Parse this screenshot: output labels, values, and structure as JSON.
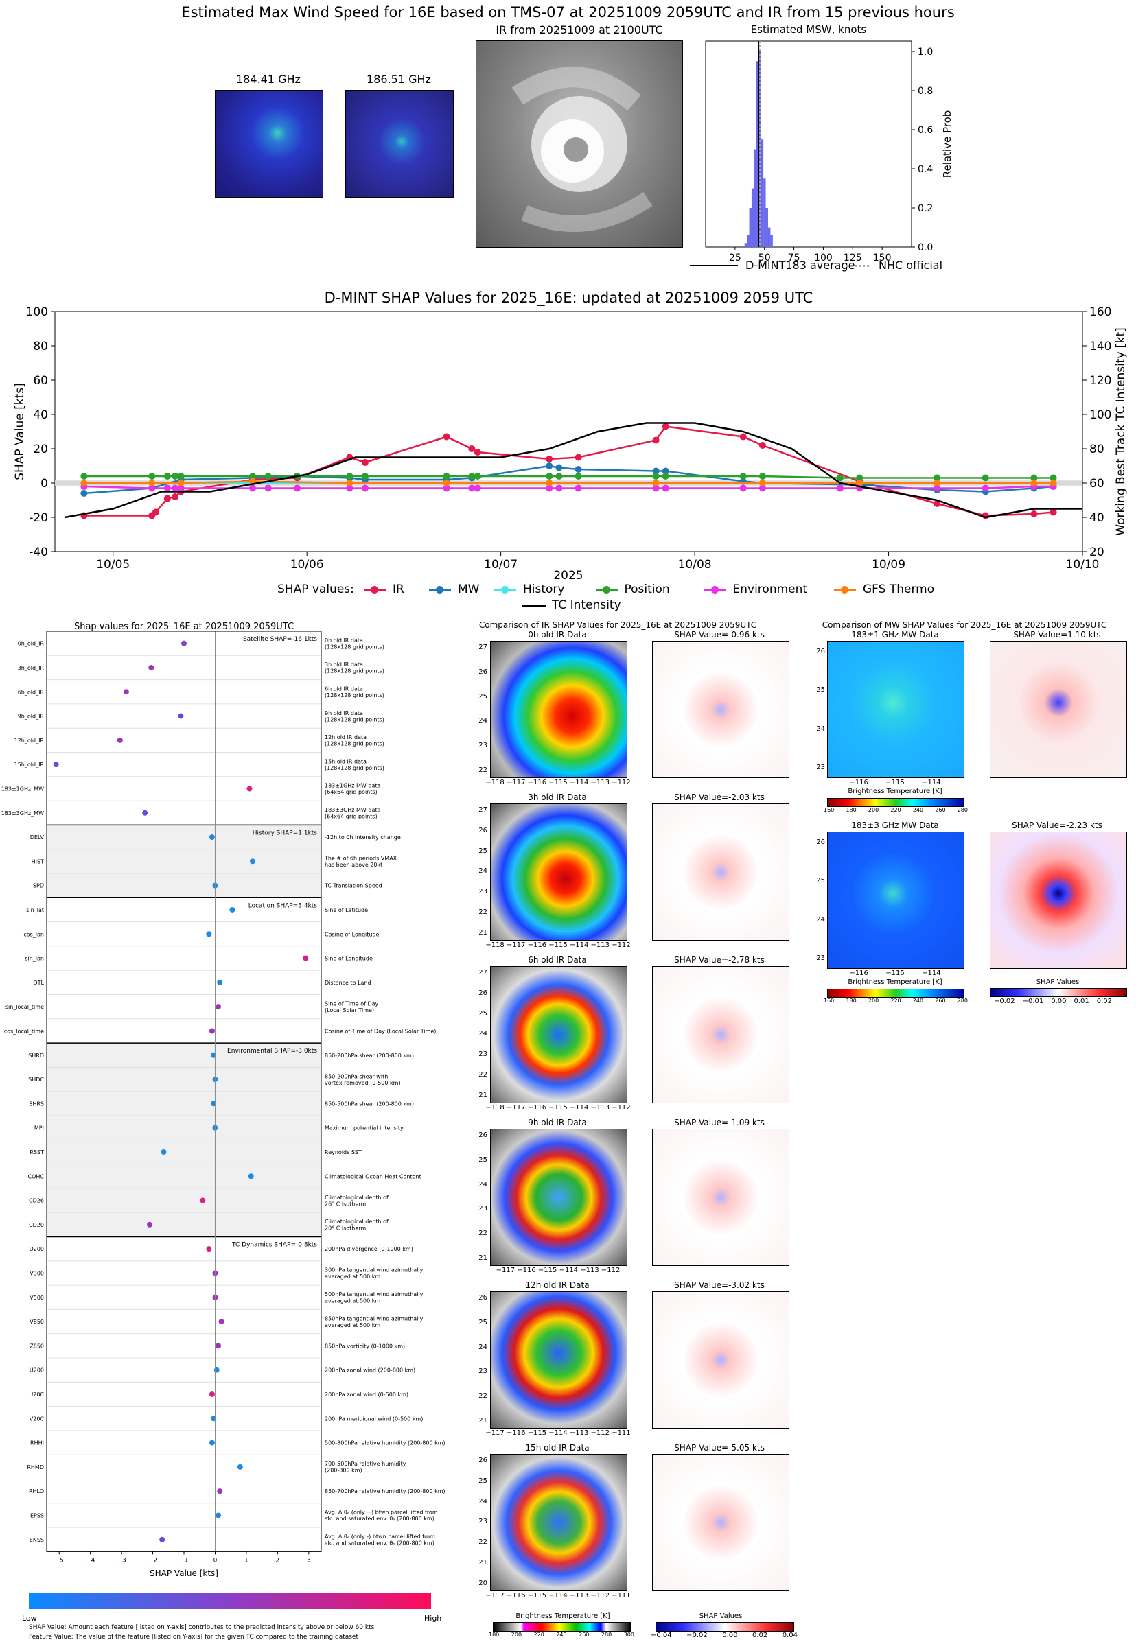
{
  "main_title": "Estimated Max Wind Speed for 16E based on TMS-07 at 20251009 2059UTC and IR from 15 previous hours",
  "mw_panels": [
    {
      "label": "184.41 GHz"
    },
    {
      "label": "186.51 GHz"
    }
  ],
  "ir_panel": {
    "label": "IR from 20251009 at 2100UTC"
  },
  "hist_panel": {
    "title": "Estimated MSW, knots",
    "ylabel": "Relative Prob",
    "xticks": [
      "25",
      "50",
      "75",
      "100",
      "125",
      "150"
    ],
    "yticks": [
      "0.0",
      "0.2",
      "0.4",
      "0.6",
      "0.8",
      "1.0"
    ],
    "legend": [
      "D-MINT183 average",
      "NHC official"
    ],
    "bars": [
      {
        "x": 34,
        "p": 0.02
      },
      {
        "x": 36,
        "p": 0.06
      },
      {
        "x": 38,
        "p": 0.2
      },
      {
        "x": 40,
        "p": 0.3
      },
      {
        "x": 42,
        "p": 0.5
      },
      {
        "x": 44,
        "p": 0.95
      },
      {
        "x": 46,
        "p": 1.0
      },
      {
        "x": 48,
        "p": 0.55
      },
      {
        "x": 50,
        "p": 0.35
      },
      {
        "x": 52,
        "p": 0.2
      },
      {
        "x": 54,
        "p": 0.1
      },
      {
        "x": 56,
        "p": 0.06
      }
    ],
    "avg": 45,
    "nhc": 45
  },
  "chart_data": {
    "type": "line",
    "title": "D-MINT SHAP Values for 2025_16E: updated at 20251009 2059 UTC",
    "xlabel": "2025",
    "ylabel": "SHAP Value [kts]",
    "y2label": "Working Best Track TC Intensity [kt]",
    "ylim": [
      -40,
      100
    ],
    "y2lim": [
      20,
      160
    ],
    "yticks": [
      "-40",
      "-20",
      "0",
      "20",
      "40",
      "60",
      "80",
      "100"
    ],
    "y2ticks": [
      "20",
      "40",
      "60",
      "80",
      "100",
      "120",
      "140",
      "160"
    ],
    "xticks": [
      "10/05",
      "10/06",
      "10/07",
      "10/08",
      "10/09",
      "10/10"
    ],
    "legend_prefix": "SHAP values:",
    "series": [
      {
        "name": "IR",
        "color": "#e6194b",
        "x": [
          4.85,
          5.2,
          5.22,
          5.28,
          5.32,
          5.35,
          5.72,
          5.95,
          6.22,
          6.3,
          6.72,
          6.85,
          6.88,
          7.25,
          7.4,
          7.8,
          7.85,
          8.25,
          8.35,
          8.85,
          9.25,
          9.5,
          9.75,
          9.85
        ],
        "y": [
          -19,
          -19,
          -17,
          -9,
          -8,
          -5,
          2,
          3,
          15,
          12,
          27,
          20,
          18,
          14,
          15,
          25,
          33,
          27,
          22,
          1,
          -12,
          -19,
          -18,
          -17
        ]
      },
      {
        "name": "MW",
        "color": "#1f77b4",
        "x": [
          4.85,
          5.2,
          5.35,
          5.72,
          5.95,
          6.22,
          6.3,
          6.72,
          6.85,
          7.25,
          7.3,
          7.4,
          7.8,
          7.85,
          8.25,
          8.35,
          8.85,
          9.25,
          9.5,
          9.75,
          9.85
        ],
        "y": [
          -6,
          -3,
          2,
          3,
          4,
          3,
          2,
          2,
          3,
          10,
          9,
          8,
          7,
          7,
          1,
          0,
          -1,
          -4,
          -5,
          -3,
          -2
        ]
      },
      {
        "name": "History",
        "color": "#48e6e6",
        "x": [
          4.85,
          5.2,
          5.35,
          5.72,
          6.22,
          6.72,
          7.25,
          7.8,
          8.35,
          8.85,
          9.25,
          9.75
        ],
        "y": [
          0,
          0,
          0,
          0,
          0,
          0,
          0,
          0,
          0,
          0,
          0,
          0
        ]
      },
      {
        "name": "Position",
        "color": "#2ca02c",
        "x": [
          4.85,
          5.2,
          5.28,
          5.32,
          5.35,
          5.72,
          5.8,
          5.95,
          6.22,
          6.3,
          6.72,
          6.85,
          6.88,
          7.25,
          7.3,
          7.4,
          7.8,
          7.85,
          8.25,
          8.35,
          8.75,
          8.85,
          9.25,
          9.5,
          9.75,
          9.85
        ],
        "y": [
          4,
          4,
          4,
          4,
          4,
          4,
          4,
          4,
          4,
          4,
          4,
          4,
          4,
          4,
          4,
          4,
          4,
          4,
          4,
          4,
          3,
          3,
          3,
          3,
          3,
          3
        ]
      },
      {
        "name": "Environment",
        "color": "#e633e6",
        "x": [
          4.85,
          5.2,
          5.28,
          5.32,
          5.35,
          5.72,
          5.8,
          5.95,
          6.22,
          6.3,
          6.72,
          6.85,
          6.88,
          7.25,
          7.3,
          7.4,
          7.8,
          7.85,
          8.25,
          8.35,
          8.75,
          8.85,
          9.25,
          9.5,
          9.75,
          9.85
        ],
        "y": [
          -2,
          -3,
          -3,
          -3,
          -3,
          -3,
          -3,
          -3,
          -3,
          -3,
          -3,
          -3,
          -3,
          -3,
          -3,
          -3,
          -3,
          -3,
          -3,
          -3,
          -3,
          -3,
          -3,
          -3,
          -2,
          -2
        ]
      },
      {
        "name": "GFS Thermo",
        "color": "#ff7f0e",
        "x": [
          4.85,
          5.2,
          5.35,
          5.72,
          6.22,
          6.72,
          7.25,
          7.8,
          8.35,
          8.85,
          9.25,
          9.75,
          9.85
        ],
        "y": [
          0,
          0,
          0,
          1,
          0,
          0,
          0,
          0,
          0,
          0,
          0,
          0,
          0
        ]
      }
    ],
    "intensity": {
      "name": "TC Intensity",
      "x": [
        4.75,
        5.0,
        5.25,
        5.5,
        5.75,
        6.0,
        6.25,
        6.5,
        6.75,
        7.0,
        7.25,
        7.5,
        7.75,
        8.0,
        8.25,
        8.5,
        8.75,
        9.0,
        9.25,
        9.5,
        9.75,
        10.0
      ],
      "y": [
        40,
        45,
        55,
        55,
        60,
        65,
        75,
        75,
        75,
        75,
        80,
        90,
        95,
        95,
        90,
        80,
        60,
        55,
        50,
        40,
        45,
        45
      ]
    }
  },
  "shap_panel": {
    "title": "Shap values for 2025_16E at 20251009 2059UTC",
    "xlabel": "SHAP Value [kts]",
    "xticks": [
      "−5",
      "−4",
      "−3",
      "−2",
      "−1",
      "0",
      "1",
      "2",
      "3"
    ],
    "sections": [
      {
        "title": "Satellite SHAP=-16.1kts",
        "shaded": false,
        "rows": [
          {
            "f": "0h_old_IR",
            "d": "0h old IR data\n(128x128 grid points)",
            "v": -1.0,
            "c": "#8a3fc8"
          },
          {
            "f": "3h_old_IR",
            "d": "3h old IR data\n(128x128 grid points)",
            "v": -2.05,
            "c": "#a034b8"
          },
          {
            "f": "6h_old_IR",
            "d": "6h old IR data\n(128x128 grid points)",
            "v": -2.85,
            "c": "#9a37c0"
          },
          {
            "f": "9h_old_IR",
            "d": "9h old IR data\n(128x128 grid points)",
            "v": -1.1,
            "c": "#5a52dc"
          },
          {
            "f": "12h_old_IR",
            "d": "12h old IR data\n(128x128 grid points)",
            "v": -3.05,
            "c": "#a034b8"
          },
          {
            "f": "15h_old_IR",
            "d": "15h old IR data\n(128x128 grid points)",
            "v": -5.1,
            "c": "#6a4ad6"
          },
          {
            "f": "183±1GHz_MW",
            "d": "183±1GHz MW data\n(64x64 grid points)",
            "v": 1.1,
            "c": "#d8208a"
          },
          {
            "f": "183±3GHz_MW",
            "d": "183±3GHz MW data\n(64x64 grid points)",
            "v": -2.25,
            "c": "#5a52dc"
          }
        ]
      },
      {
        "title": "History SHAP=1.1kts",
        "shaded": true,
        "rows": [
          {
            "f": "DELV",
            "d": "-12h to 0h Intensity change",
            "v": -0.1,
            "c": "#1e88e5"
          },
          {
            "f": "HIST",
            "d": "The # of 6h periods VMAX\nhas been above 20kt",
            "v": 1.2,
            "c": "#1e88e5"
          },
          {
            "f": "SPD",
            "d": "TC Translation Speed",
            "v": 0.0,
            "c": "#1e88e5"
          }
        ]
      },
      {
        "title": "Location SHAP=3.4kts",
        "shaded": false,
        "rows": [
          {
            "f": "sin_lat",
            "d": "Sine of Latitude",
            "v": 0.55,
            "c": "#1e88e5"
          },
          {
            "f": "cos_lon",
            "d": "Cosine of Longitude",
            "v": -0.2,
            "c": "#1e88e5"
          },
          {
            "f": "sin_lon",
            "d": "Sine of Longitude",
            "v": 2.9,
            "c": "#d8208a"
          },
          {
            "f": "DTL",
            "d": "Distance to Land",
            "v": 0.15,
            "c": "#1e88e5"
          },
          {
            "f": "sin_local_time",
            "d": "Sine of Time of Day\n(Local Solar Time)",
            "v": 0.1,
            "c": "#a034b8"
          },
          {
            "f": "cos_local_time",
            "d": "Cosine of Time of Day (Local Solar Time)",
            "v": -0.1,
            "c": "#a034b8"
          }
        ]
      },
      {
        "title": "Environmental SHAP=-3.0kts",
        "shaded": true,
        "rows": [
          {
            "f": "SHRD",
            "d": "850-200hPa shear (200-800 km)",
            "v": -0.05,
            "c": "#1e88e5"
          },
          {
            "f": "SHDC",
            "d": "850-200hPa shear with\nvortex removed (0-500 km)",
            "v": 0.0,
            "c": "#1e88e5"
          },
          {
            "f": "SHRS",
            "d": "850-500hPa shear (200-800 km)",
            "v": -0.05,
            "c": "#1e88e5"
          },
          {
            "f": "MPI",
            "d": "Maximum potential intensity",
            "v": 0.0,
            "c": "#1e88e5"
          },
          {
            "f": "RSST",
            "d": "Reynolds SST",
            "v": -1.65,
            "c": "#1e88e5"
          },
          {
            "f": "COHC",
            "d": "Climatological Ocean Heat Content",
            "v": 1.15,
            "c": "#1e88e5"
          },
          {
            "f": "CD26",
            "d": "Climatological depth of\n26° C isotherm",
            "v": -0.4,
            "c": "#d8208a"
          },
          {
            "f": "CD20",
            "d": "Climatological depth of\n20° C isotherm",
            "v": -2.1,
            "c": "#a034b8"
          }
        ]
      },
      {
        "title": "TC Dynamics SHAP=-0.8kts",
        "shaded": false,
        "rows": [
          {
            "f": "D200",
            "d": "200hPa divergence (0-1000 km)",
            "v": -0.2,
            "c": "#d8208a"
          },
          {
            "f": "V300",
            "d": "300hPa tangential wind azimuthally\naveraged at 500 km",
            "v": 0.0,
            "c": "#a034b8"
          },
          {
            "f": "V500",
            "d": "500hPa tangential wind azimuthally\naveraged at 500 km",
            "v": 0.0,
            "c": "#a034b8"
          },
          {
            "f": "V850",
            "d": "850hPa tangential wind azimuthally\naveraged at 500 km",
            "v": 0.2,
            "c": "#a034b8"
          },
          {
            "f": "Z850",
            "d": "850hPa vorticity (0-1000 km)",
            "v": 0.1,
            "c": "#a034b8"
          },
          {
            "f": "U200",
            "d": "200hPa zonal wind (200-800 km)",
            "v": 0.05,
            "c": "#1e88e5"
          },
          {
            "f": "U20C",
            "d": "200hPa zonal wind (0-500 km)",
            "v": -0.1,
            "c": "#d8208a"
          },
          {
            "f": "V20C",
            "d": "200hPa meridional wind (0-500 km)",
            "v": -0.05,
            "c": "#1e88e5"
          },
          {
            "f": "RHHI",
            "d": "500-300hPa relative humidity (200-800 km)",
            "v": -0.1,
            "c": "#1e88e5"
          },
          {
            "f": "RHMD",
            "d": "700-500hPa relative humidity\n(200-800 km)",
            "v": 0.8,
            "c": "#1e88e5"
          },
          {
            "f": "RHLO",
            "d": "850-700hPa relative humidity (200-800 km)",
            "v": 0.15,
            "c": "#a034b8"
          },
          {
            "f": "EPSS",
            "d": "Avg. Δ θₑ (only +) btwn parcel lifted from\nsfc. and saturated env. θₑ (200-800 km)",
            "v": 0.1,
            "c": "#1e88e5"
          },
          {
            "f": "ENSS",
            "d": "Avg. Δ θₑ (only -) btwn parcel lifted from\nsfc. and saturated env. θₑ (200-800 km)",
            "v": -1.7,
            "c": "#6a4ad6"
          }
        ]
      }
    ],
    "colorbar_low": "Low",
    "colorbar_high": "High",
    "footnote1": "SHAP Value: Amount each feature [listed on Y-axis] contributes to the predicted intensity above or below 60 kts",
    "footnote2": "Feature Value: The value of the feature [listed on Y-axis] for the given TC compared to the training dataset"
  },
  "ir_compare": {
    "title": "Comparison of IR SHAP Values for 2025_16E at 20251009 2059UTC",
    "rows": [
      {
        "left": "0h old IR Data",
        "right": "SHAP Value=-0.96 kts",
        "yt": [
          "27",
          "26",
          "25",
          "24",
          "23",
          "22"
        ],
        "xt": "−118 −117 −116 −115 −114 −113 −112"
      },
      {
        "left": "3h old IR Data",
        "right": "SHAP Value=-2.03 kts",
        "yt": [
          "27",
          "26",
          "25",
          "24",
          "23",
          "22",
          "21"
        ],
        "xt": "−118 −117 −116 −115 −114 −113 −112"
      },
      {
        "left": "6h old IR Data",
        "right": "SHAP Value=-2.78 kts",
        "yt": [
          "27",
          "26",
          "25",
          "24",
          "23",
          "22",
          "21"
        ],
        "xt": "−118 −117 −116 −115 −114 −113 −112"
      },
      {
        "left": "9h old IR Data",
        "right": "SHAP Value=-1.09 kts",
        "yt": [
          "26",
          "25",
          "24",
          "23",
          "22",
          "21"
        ],
        "xt": "−117 −116 −115 −114 −113 −112"
      },
      {
        "left": "12h old IR Data",
        "right": "SHAP Value=-3.02 kts",
        "yt": [
          "26",
          "25",
          "24",
          "23",
          "22",
          "21"
        ],
        "xt": "−117 −116 −115 −114 −113 −112 −111"
      },
      {
        "left": "15h old IR Data",
        "right": "SHAP Value=-5.05 kts",
        "yt": [
          "26",
          "25",
          "24",
          "23",
          "22",
          "21",
          "20"
        ],
        "xt": "−117 −116 −115 −114 −113 −112 −111"
      }
    ],
    "cb_label_left": "Brightness Temperature [K]",
    "cb_ticks_left": [
      "180",
      "200",
      "220",
      "240",
      "260",
      "280",
      "300"
    ],
    "cb_label_right": "SHAP Values",
    "cb_ticks_right": [
      "−0.04",
      "−0.02",
      "0.00",
      "0.02",
      "0.04"
    ]
  },
  "mw_compare": {
    "title": "Comparison of MW SHAP Values for 2025_16E at 20251009 2059UTC",
    "rows": [
      {
        "left": "183±1 GHz MW Data",
        "right": "SHAP Value=1.10 kts"
      },
      {
        "left": "183±3 GHz MW Data",
        "right": "SHAP Value=-2.23 kts"
      }
    ],
    "yt": [
      "26",
      "25",
      "24",
      "23"
    ],
    "xt": "−116        −115        −114",
    "cb_label": "Brightness Temperature [K]",
    "cb_ticks": [
      "160",
      "180",
      "200",
      "220",
      "240",
      "260",
      "280"
    ],
    "shap_cb_label": "SHAP Values",
    "shap_cb_ticks": [
      "−0.02",
      "−0.01",
      "0.00",
      "0.01",
      "0.02"
    ]
  }
}
